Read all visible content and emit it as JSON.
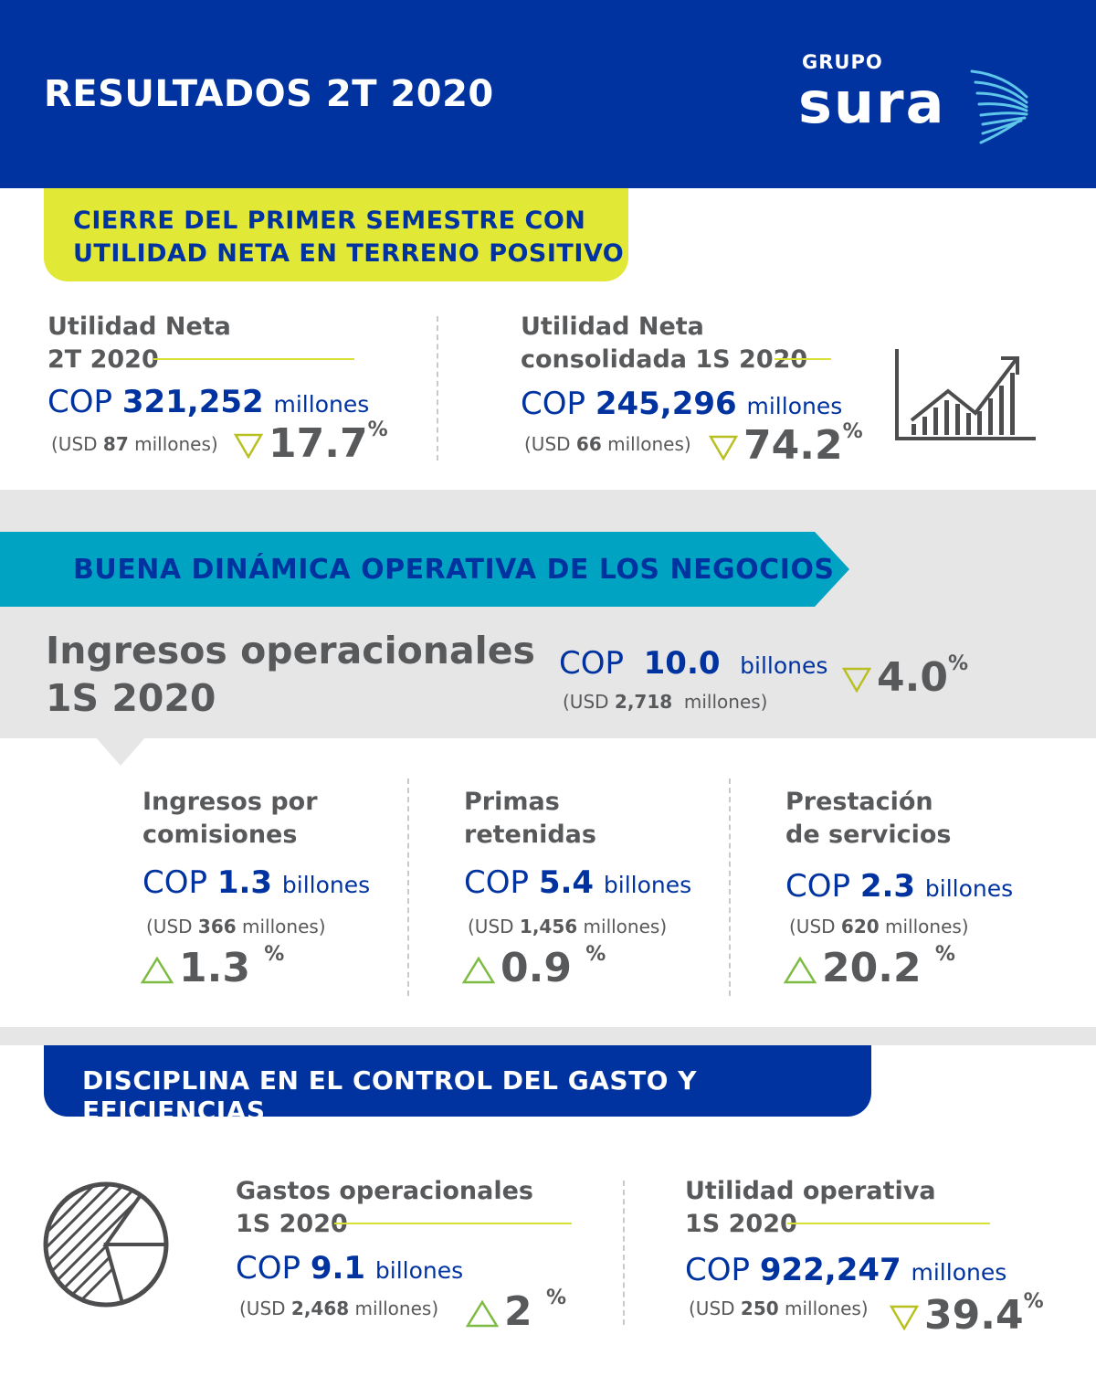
{
  "header": {
    "title": "RESULTADOS 2T 2020",
    "logo": {
      "top": "GRUPO",
      "name": "sura"
    }
  },
  "colors": {
    "primary": "#0033a0",
    "lime": "#e2e836",
    "teal": "#00a4c2",
    "gray": "#58595b",
    "band": "#e6e6e7",
    "arrow": "#b7c020",
    "arrow_up": "#7dbb42"
  },
  "section1": {
    "banner_line1": "CIERRE DEL PRIMER SEMESTRE CON",
    "banner_line2": "UTILIDAD NETA EN TERRENO POSITIVO",
    "card1": {
      "label_line1": "Utilidad Neta",
      "label_line2": "2T 2020",
      "cop": "COP",
      "value": "321,252",
      "unit": "millones",
      "usd_prefix": "(USD",
      "usd_value": "87",
      "usd_suffix": "millones)",
      "change": "17.7",
      "pct": "%",
      "direction": "down"
    },
    "card2": {
      "label_line1": "Utilidad Neta",
      "label_line2": "consolidada 1S 2020",
      "cop": "COP",
      "value": "245,296",
      "unit": "millones",
      "usd_prefix": "(USD",
      "usd_value": "66",
      "usd_suffix": "millones)",
      "change": "74.2",
      "pct": "%",
      "direction": "down"
    },
    "icon": "bar-chart-growth-icon"
  },
  "section2": {
    "banner": "BUENA DINÁMICA OPERATIVA DE LOS NEGOCIOS",
    "title_line1": "Ingresos operacionales",
    "title_line2": "1S 2020",
    "main": {
      "cop": "COP",
      "value": "10.0",
      "unit": "billones",
      "usd_prefix": "(USD",
      "usd_value": "2,718",
      "usd_suffix": "millones)",
      "change": "4.0",
      "pct": "%",
      "direction": "down"
    },
    "items": [
      {
        "label_line1": "Ingresos por",
        "label_line2": "comisiones",
        "cop": "COP",
        "value": "1.3",
        "unit": "billones",
        "usd_prefix": "(USD",
        "usd_value": "366",
        "usd_suffix": "millones)",
        "change": "1.3",
        "pct": "%",
        "direction": "up"
      },
      {
        "label_line1": "Primas",
        "label_line2": "retenidas",
        "cop": "COP",
        "value": "5.4",
        "unit": "billones",
        "usd_prefix": "(USD",
        "usd_value": "1,456",
        "usd_suffix": "millones)",
        "change": "0.9",
        "pct": "%",
        "direction": "up"
      },
      {
        "label_line1": "Prestación",
        "label_line2": "de servicios",
        "cop": "COP",
        "value": "2.3",
        "unit": "billones",
        "usd_prefix": "(USD",
        "usd_value": "620",
        "usd_suffix": "millones)",
        "change": "20.2",
        "pct": "%",
        "direction": "up"
      }
    ]
  },
  "section3": {
    "banner": "DISCIPLINA EN EL CONTROL DEL GASTO Y EFICIENCIAS",
    "icon": "pie-chart-icon",
    "card1": {
      "label_line1": "Gastos operacionales",
      "label_line2": "1S 2020",
      "cop": "COP",
      "value": "9.1",
      "unit": "billones",
      "usd_prefix": "(USD",
      "usd_value": "2,468",
      "usd_suffix": "millones)",
      "change": "2",
      "pct": "%",
      "direction": "up"
    },
    "card2": {
      "label_line1": "Utilidad operativa",
      "label_line2": "1S 2020",
      "cop": "COP",
      "value": "922,247",
      "unit": "millones",
      "usd_prefix": "(USD",
      "usd_value": "250",
      "usd_suffix": "millones)",
      "change": "39.4",
      "pct": "%",
      "direction": "down"
    }
  }
}
